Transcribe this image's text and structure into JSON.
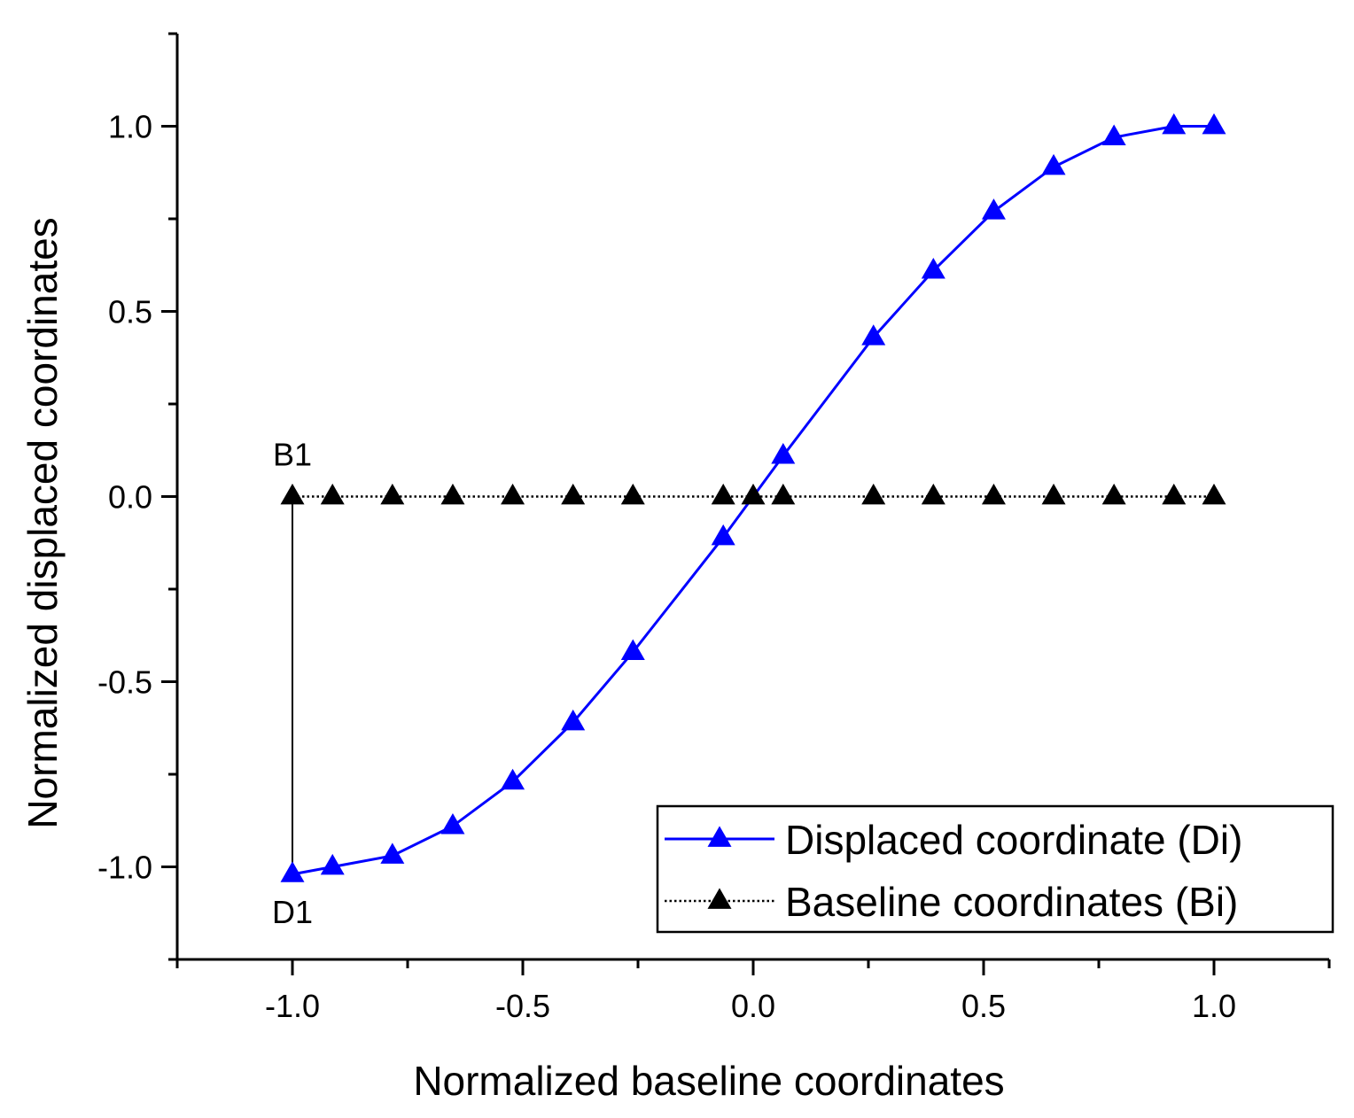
{
  "chart_data": {
    "type": "line",
    "title": "",
    "xlabel": "Normalized baseline coordinates",
    "ylabel": "Normalized displaced coordinates",
    "xlim": [
      -1.25,
      1.25
    ],
    "ylim": [
      -1.25,
      1.25
    ],
    "xticks": [
      -1.0,
      -0.5,
      0.0,
      0.5,
      1.0
    ],
    "yticks": [
      -1.0,
      -0.5,
      0.0,
      0.5,
      1.0
    ],
    "xtick_labels": [
      "-1.0",
      "-0.5",
      "0.0",
      "0.5",
      "1.0"
    ],
    "ytick_labels": [
      "-1.0",
      "-0.5",
      "0.0",
      "0.5",
      "1.0"
    ],
    "x_minor_step": 0.25,
    "y_minor_step": 0.25,
    "grid": false,
    "legend_position": "bottom-right",
    "series": [
      {
        "name": "Displaced coordinate (Di)",
        "color": "#0000ff",
        "line_style": "solid",
        "marker": "triangle-up",
        "marker_color": "#0000ff",
        "x": [
          -1.0,
          -0.913,
          -0.783,
          -0.652,
          -0.522,
          -0.391,
          -0.261,
          -0.065,
          0.065,
          0.261,
          0.391,
          0.522,
          0.652,
          0.783,
          0.913,
          1.0
        ],
        "y": [
          -1.02,
          -1.0,
          -0.97,
          -0.89,
          -0.77,
          -0.61,
          -0.42,
          -0.11,
          0.11,
          0.43,
          0.61,
          0.77,
          0.89,
          0.97,
          1.0,
          1.0
        ]
      },
      {
        "name": "Baseline coordinates (Bi)",
        "color": "#000000",
        "line_style": "dotted",
        "marker": "triangle-up",
        "marker_color": "#000000",
        "x": [
          -1.0,
          -0.913,
          -0.783,
          -0.652,
          -0.522,
          -0.391,
          -0.261,
          -0.065,
          0.0,
          0.065,
          0.261,
          0.391,
          0.522,
          0.652,
          0.783,
          0.913,
          1.0
        ],
        "y": [
          0,
          0,
          0,
          0,
          0,
          0,
          0,
          0,
          0,
          0,
          0,
          0,
          0,
          0,
          0,
          0,
          0
        ]
      }
    ],
    "annotations": [
      {
        "label": "B1",
        "x": -1.0,
        "y": 0.0
      },
      {
        "label": "D1",
        "x": -1.0,
        "y": -1.02
      }
    ],
    "connector": {
      "from": "B1",
      "to": "D1",
      "color": "#000000"
    }
  }
}
